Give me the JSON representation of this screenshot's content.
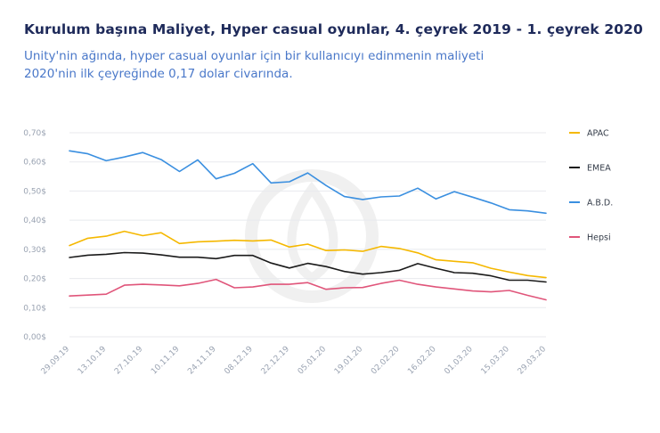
{
  "title": "Kurulum başına Maliyet, Hyper casual oyunlar, 4. çeyrek 2019 - 1. çeyrek 2020",
  "subtitle_line1": "Unity'nin ağında, hyper casual oyunlar için bir kullanıcıyı edinmenin maliyeti",
  "subtitle_line2": "2020'nin ilk çeyreğinde 0,17 dolar civarında.",
  "chart_data": {
    "type": "line",
    "title": "Kurulum başına Maliyet, Hyper casual oyunlar, 4. çeyrek 2019 - 1. çeyrek 2020",
    "xlabel": "",
    "ylabel": "",
    "ylim": [
      0,
      0.7
    ],
    "y_ticks": [
      0,
      0.1,
      0.2,
      0.3,
      0.4,
      0.5,
      0.6,
      0.7
    ],
    "y_tick_labels": [
      "0,00$",
      "0,10$",
      "0,20$",
      "0,30$",
      "0,40$",
      "0,50$",
      "0,60$",
      "0,70$"
    ],
    "x_tick_labels": [
      "29.09.19",
      "13.10.19",
      "27.10.19",
      "10.11.19",
      "24.11.19",
      "08.12.19",
      "22.12.19",
      "05.01.20",
      "19.01.20",
      "02.02.20",
      "16.02.20",
      "01.03.20",
      "15.03.20",
      "29.03.20"
    ],
    "grid": true,
    "legend_position": "right",
    "series": [
      {
        "name": "APAC",
        "color": "#f5b800",
        "values": [
          0.313,
          0.338,
          0.345,
          0.362,
          0.347,
          0.357,
          0.32,
          0.326,
          0.328,
          0.331,
          0.329,
          0.332,
          0.308,
          0.318,
          0.296,
          0.298,
          0.293,
          0.31,
          0.303,
          0.288,
          0.264,
          0.259,
          0.254,
          0.235,
          0.222,
          0.21,
          0.203
        ]
      },
      {
        "name": "EMEA",
        "color": "#1a1a1a",
        "values": [
          0.272,
          0.28,
          0.283,
          0.289,
          0.287,
          0.281,
          0.273,
          0.273,
          0.268,
          0.279,
          0.279,
          0.253,
          0.236,
          0.252,
          0.241,
          0.224,
          0.215,
          0.22,
          0.228,
          0.251,
          0.235,
          0.22,
          0.218,
          0.209,
          0.194,
          0.194,
          0.188
        ]
      },
      {
        "name": "A.B.D.",
        "color": "#3a8fe0",
        "values": [
          0.638,
          0.628,
          0.604,
          0.617,
          0.632,
          0.608,
          0.567,
          0.607,
          0.542,
          0.561,
          0.594,
          0.528,
          0.532,
          0.562,
          0.519,
          0.481,
          0.471,
          0.48,
          0.483,
          0.51,
          0.473,
          0.498,
          0.479,
          0.459,
          0.436,
          0.432,
          0.424
        ]
      },
      {
        "name": "Hepsi",
        "color": "#e0557a",
        "values": [
          0.14,
          0.143,
          0.146,
          0.177,
          0.18,
          0.178,
          0.175,
          0.183,
          0.197,
          0.168,
          0.171,
          0.18,
          0.18,
          0.186,
          0.163,
          0.168,
          0.169,
          0.183,
          0.194,
          0.18,
          0.171,
          0.164,
          0.157,
          0.154,
          0.159,
          0.142,
          0.127
        ]
      }
    ]
  }
}
